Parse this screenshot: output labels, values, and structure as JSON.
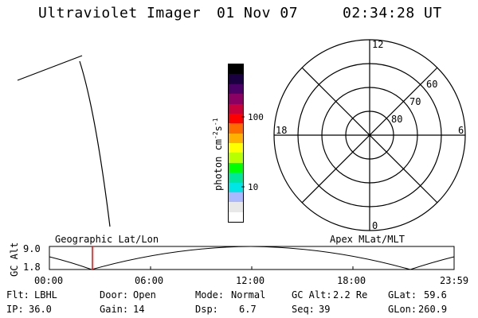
{
  "header": {
    "title": "Ultraviolet Imager",
    "date": "01 Nov 07",
    "time": "02:34:28 UT"
  },
  "colorbar": {
    "unit_label": "photon cm",
    "unit_exp1": "-2",
    "unit_s": "s",
    "unit_exp2": "-1",
    "tick_100": "100",
    "tick_10": "10",
    "colors": [
      "#000000",
      "#1a0040",
      "#4a0066",
      "#8b0063",
      "#c8003c",
      "#ff0000",
      "#ff6a00",
      "#ffb000",
      "#ffff00",
      "#b8ff00",
      "#00ff00",
      "#00e69a",
      "#00e6e6",
      "#aab8ff",
      "#e8e8e8",
      "#ffffff"
    ]
  },
  "polar": {
    "lat_labels": [
      "60",
      "70",
      "80"
    ],
    "mlt_labels": {
      "top": "12",
      "left": "18",
      "right": "6",
      "bottom": "0"
    }
  },
  "timeline": {
    "y_label": "GC Alt",
    "y_max": "9.0",
    "y_min": "1.8",
    "left_caption": "Geographic Lat/Lon",
    "right_caption": "Apex MLat/MLT",
    "ticks": [
      "00:00",
      "06:00",
      "12:00",
      "18:00",
      "23:59"
    ],
    "current_marker_time": "02:34"
  },
  "status": {
    "flt_label": "Flt:",
    "flt_value": "LBHL",
    "ip_label": "IP:",
    "ip_value": "36.0",
    "door_label": "Door:",
    "door_value": "Open",
    "gain_label": "Gain:",
    "gain_value": "14",
    "mode_label": "Mode:",
    "mode_value": "Normal",
    "dsp_label": "Dsp:",
    "dsp_value": "6.7",
    "gcalt_label": "GC Alt:",
    "gcalt_value": "2.2 Re",
    "seq_label": "Seq:",
    "seq_value": "39",
    "glat_label": "GLat:",
    "glat_value": "59.6",
    "glon_label": "GLon:",
    "glon_value": "260.9"
  },
  "colors": {
    "marker": "#ff0000",
    "line": "#000000"
  }
}
